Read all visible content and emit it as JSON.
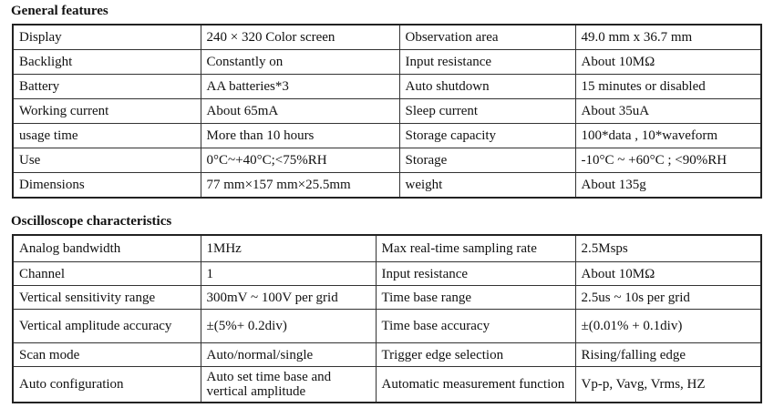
{
  "sections": [
    {
      "title": "General features",
      "rows": [
        [
          "Display",
          "240 × 320 Color screen",
          "Observation area",
          "49.0 mm x 36.7 mm"
        ],
        [
          "Backlight",
          "Constantly on",
          "Input resistance",
          "About 10MΩ"
        ],
        [
          "Battery",
          "AA batteries*3",
          "Auto shutdown",
          "15 minutes or disabled"
        ],
        [
          "Working current",
          "About 65mA",
          "Sleep current",
          "About 35uA"
        ],
        [
          "usage time",
          "More than 10 hours",
          "Storage capacity",
          "100*data , 10*waveform"
        ],
        [
          "Use",
          "0°C~+40°C;<75%RH",
          "Storage",
          "-10°C ~ +60°C ; <90%RH"
        ],
        [
          "Dimensions",
          "77 mm×157 mm×25.5mm",
          "weight",
          "About 135g"
        ]
      ]
    },
    {
      "title": "Oscilloscope characteristics",
      "rows": [
        [
          "Analog bandwidth",
          "1MHz",
          "Max real-time sampling rate",
          "2.5Msps"
        ],
        [
          "Channel",
          "1",
          "Input resistance",
          "About 10MΩ"
        ],
        [
          "Vertical sensitivity range",
          "300mV ~ 100V per grid",
          "Time base range",
          "2.5us ~ 10s per grid"
        ],
        [
          "Vertical amplitude accuracy",
          "±(5%+ 0.2div)",
          "Time base accuracy",
          "±(0.01% + 0.1div)"
        ],
        [
          "Scan mode",
          "Auto/normal/single",
          "Trigger edge selection",
          "Rising/falling edge"
        ],
        [
          "Auto configuration",
          "Auto set time base and vertical amplitude",
          "Automatic measurement function",
          "Vp-p, Vavg, Vrms, HZ"
        ]
      ]
    }
  ]
}
